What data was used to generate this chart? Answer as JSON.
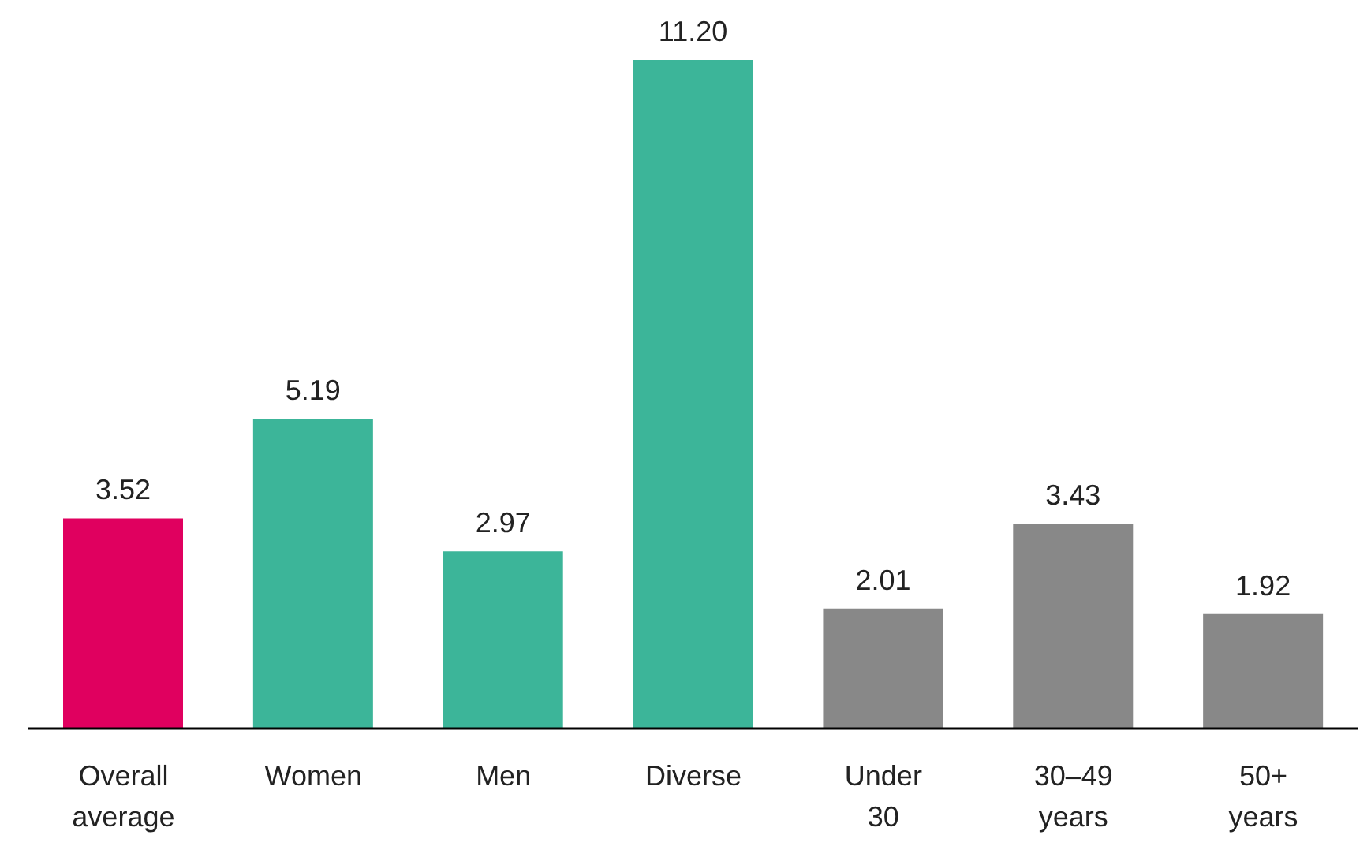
{
  "chart_data": {
    "type": "bar",
    "categories": [
      "Overall average",
      "Women",
      "Men",
      "Diverse",
      "Under 30",
      "30–49 years",
      "50+ years"
    ],
    "values": [
      3.52,
      5.19,
      2.97,
      11.2,
      2.01,
      3.43,
      1.92
    ],
    "colors": [
      "#e0005f",
      "#3cb599",
      "#3cb599",
      "#3cb599",
      "#888888",
      "#888888",
      "#888888"
    ],
    "value_labels": [
      "3.52",
      "5.19",
      "2.97",
      "11.20",
      "2.01",
      "3.43",
      "1.92"
    ],
    "grid": false
  }
}
